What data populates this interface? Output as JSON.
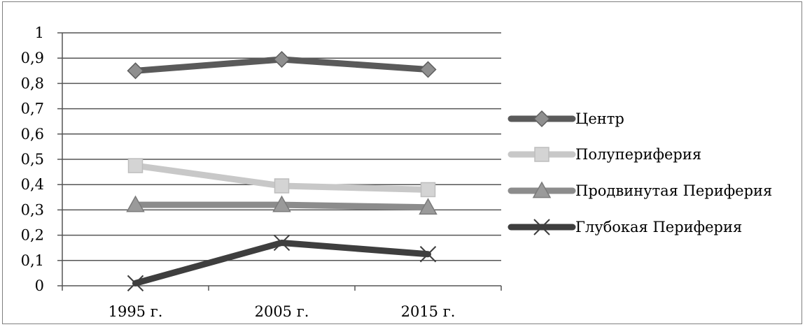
{
  "chart_data": {
    "type": "line",
    "title": "",
    "xlabel": "",
    "ylabel": "",
    "categories": [
      "1995 г.",
      "2005 г.",
      "2015 г."
    ],
    "ylim": [
      0,
      1
    ],
    "yticks": [
      "0",
      "0,1",
      "0,2",
      "0,3",
      "0,4",
      "0,5",
      "0,6",
      "0,7",
      "0,8",
      "0,9",
      "1"
    ],
    "grid": true,
    "legend_position": "right",
    "series": [
      {
        "name": "Центр",
        "values": [
          0.85,
          0.895,
          0.855
        ],
        "color": "#5a5a5a",
        "marker": "diamond"
      },
      {
        "name": "Полупериферия",
        "values": [
          0.475,
          0.395,
          0.38
        ],
        "color": "#c8c8c8",
        "marker": "square"
      },
      {
        "name": "Продвинутая Периферия",
        "values": [
          0.32,
          0.32,
          0.31
        ],
        "color": "#8c8c8c",
        "marker": "triangle"
      },
      {
        "name": "Глубокая Периферия",
        "values": [
          0.01,
          0.17,
          0.125
        ],
        "color": "#3e3e3e",
        "marker": "x"
      }
    ]
  }
}
